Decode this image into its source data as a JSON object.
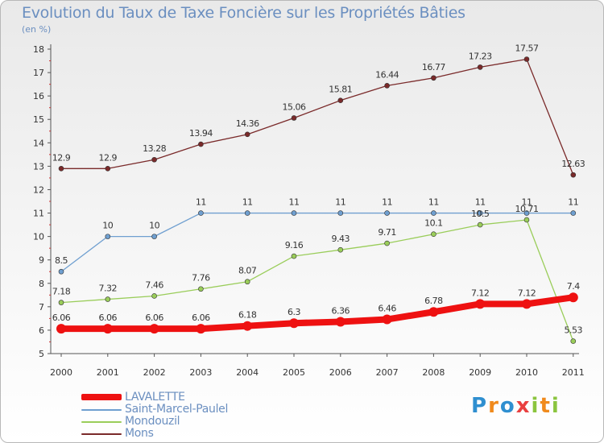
{
  "title": "Evolution du Taux de Taxe Foncière sur les Propriétés Bâties",
  "unit_label": "(en %)",
  "brand": "Proxiti",
  "chart_data": {
    "type": "line",
    "x": [
      "2000",
      "2001",
      "2002",
      "2003",
      "2004",
      "2005",
      "2006",
      "2007",
      "2008",
      "2009",
      "2010",
      "2011"
    ],
    "ylim": [
      5,
      18
    ],
    "yticks": [
      "5",
      "6",
      "7",
      "8",
      "9",
      "10",
      "11",
      "12",
      "13",
      "14",
      "15",
      "16",
      "17",
      "18"
    ],
    "grid": false,
    "legend_position": "bottom-left",
    "series": [
      {
        "name": "LAVALETTE",
        "color": "#ee1111",
        "values": [
          6.06,
          6.06,
          6.06,
          6.06,
          6.18,
          6.3,
          6.36,
          6.46,
          6.78,
          7.12,
          7.12,
          7.4
        ],
        "labels": [
          "6.06",
          "6.06",
          "6.06",
          "6.06",
          "6.18",
          "6.3",
          "6.36",
          "6.46",
          "6.78",
          "7.12",
          "7.12",
          "7.4"
        ]
      },
      {
        "name": "Saint-Marcel-Paulel",
        "color": "#6f9fd0",
        "values": [
          8.5,
          10,
          10,
          11,
          11,
          11,
          11,
          11,
          11,
          11,
          11,
          11
        ],
        "labels": [
          "8.5",
          "10",
          "10",
          "11",
          "11",
          "11",
          "11",
          "11",
          "11",
          "11",
          "11",
          "11"
        ]
      },
      {
        "name": "Mondouzil",
        "color": "#9acd5a",
        "values": [
          7.18,
          7.32,
          7.46,
          7.76,
          8.07,
          9.16,
          9.43,
          9.71,
          10.1,
          10.5,
          10.71,
          5.53
        ],
        "labels": [
          "7.18",
          "7.32",
          "7.46",
          "7.76",
          "8.07",
          "9.16",
          "9.43",
          "9.71",
          "10.1",
          "10.5",
          "10.71",
          "5.53"
        ]
      },
      {
        "name": "Mons",
        "color": "#7a2a2a",
        "values": [
          12.9,
          12.9,
          13.28,
          13.94,
          14.36,
          15.06,
          15.81,
          16.44,
          16.77,
          17.23,
          17.57,
          12.63
        ],
        "labels": [
          "12.9",
          "12.9",
          "13.28",
          "13.94",
          "14.36",
          "15.06",
          "15.81",
          "16.44",
          "16.77",
          "17.23",
          "17.57",
          "12.63"
        ]
      }
    ]
  }
}
